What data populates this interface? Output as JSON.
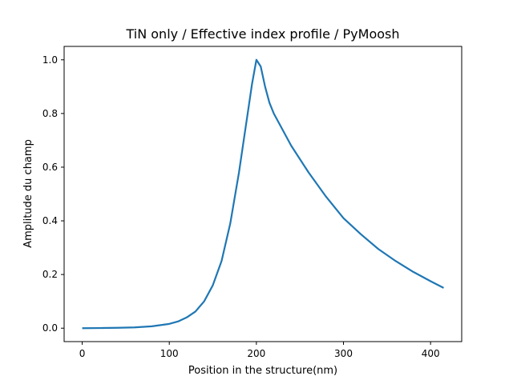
{
  "chart_data": {
    "type": "line",
    "title": "TiN only / Effective index profile / PyMoosh",
    "xlabel": "Position in the structure(nm)",
    "ylabel": "Amplitude du champ",
    "xlim": [
      -20.75,
      435.75
    ],
    "ylim": [
      -0.05,
      1.05
    ],
    "xticks": [
      0,
      100,
      200,
      300,
      400
    ],
    "yticks": [
      0.0,
      0.2,
      0.4,
      0.6,
      0.8,
      1.0
    ],
    "xtick_labels": [
      "0",
      "100",
      "200",
      "300",
      "400"
    ],
    "ytick_labels": [
      "0.0",
      "0.2",
      "0.4",
      "0.6",
      "0.8",
      "1.0"
    ],
    "grid": false,
    "legend": "none",
    "series": [
      {
        "color": "#1f77b4",
        "x": [
          0,
          20,
          40,
          60,
          80,
          100,
          110,
          120,
          130,
          140,
          150,
          160,
          170,
          180,
          185,
          190,
          195,
          200,
          205,
          210,
          215,
          220,
          240,
          260,
          280,
          300,
          320,
          340,
          360,
          380,
          400,
          415
        ],
        "y": [
          0.0,
          0.0005,
          0.0015,
          0.003,
          0.007,
          0.016,
          0.025,
          0.04,
          0.062,
          0.1,
          0.16,
          0.25,
          0.39,
          0.58,
          0.69,
          0.8,
          0.91,
          1.0,
          0.975,
          0.9,
          0.84,
          0.8,
          0.68,
          0.58,
          0.49,
          0.41,
          0.35,
          0.295,
          0.25,
          0.21,
          0.175,
          0.15
        ]
      }
    ]
  }
}
